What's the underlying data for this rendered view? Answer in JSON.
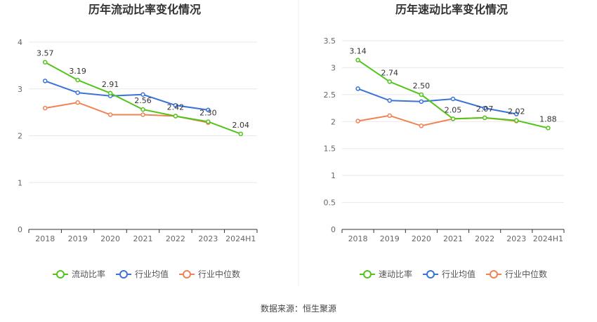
{
  "source_text": "数据来源：恒生聚源",
  "chart_data": [
    {
      "type": "line",
      "title": "历年流动比率变化情况",
      "categories": [
        "2018",
        "2019",
        "2020",
        "2021",
        "2022",
        "2023",
        "2024H1"
      ],
      "ylim": [
        0,
        4
      ],
      "yticks": [
        "0",
        "1",
        "2",
        "3",
        "4"
      ],
      "grid": true,
      "legend_position": "bottom",
      "series": [
        {
          "name": "流动比率",
          "color": "#52c41a",
          "values": [
            3.57,
            3.19,
            2.91,
            2.56,
            2.42,
            2.3,
            2.04
          ],
          "labels": [
            "3.57",
            "3.19",
            "2.91",
            "2.56",
            "2.42",
            "2.30",
            "2.04"
          ]
        },
        {
          "name": "行业均值",
          "color": "#3a73d8",
          "values": [
            3.17,
            2.92,
            2.85,
            2.88,
            2.65,
            2.55,
            null
          ]
        },
        {
          "name": "行业中位数",
          "color": "#ef8354",
          "values": [
            2.59,
            2.71,
            2.45,
            2.45,
            2.42,
            2.28,
            null
          ]
        }
      ]
    },
    {
      "type": "line",
      "title": "历年速动比率变化情况",
      "categories": [
        "2018",
        "2019",
        "2020",
        "2021",
        "2022",
        "2023",
        "2024H1"
      ],
      "ylim": [
        0,
        3.5
      ],
      "yticks": [
        "0",
        "0.5",
        "1",
        "1.5",
        "2",
        "2.5",
        "3",
        "3.5"
      ],
      "grid": true,
      "legend_position": "bottom",
      "series": [
        {
          "name": "速动比率",
          "color": "#52c41a",
          "values": [
            3.14,
            2.74,
            2.5,
            2.05,
            2.07,
            2.02,
            1.88
          ],
          "labels": [
            "3.14",
            "2.74",
            "2.50",
            "2.05",
            "2.07",
            "2.02",
            "1.88"
          ]
        },
        {
          "name": "行业均值",
          "color": "#3a73d8",
          "values": [
            2.61,
            2.39,
            2.37,
            2.42,
            2.25,
            2.14,
            null
          ]
        },
        {
          "name": "行业中位数",
          "color": "#ef8354",
          "values": [
            2.01,
            2.11,
            1.92,
            2.05,
            2.07,
            2.01,
            null
          ]
        }
      ]
    }
  ]
}
